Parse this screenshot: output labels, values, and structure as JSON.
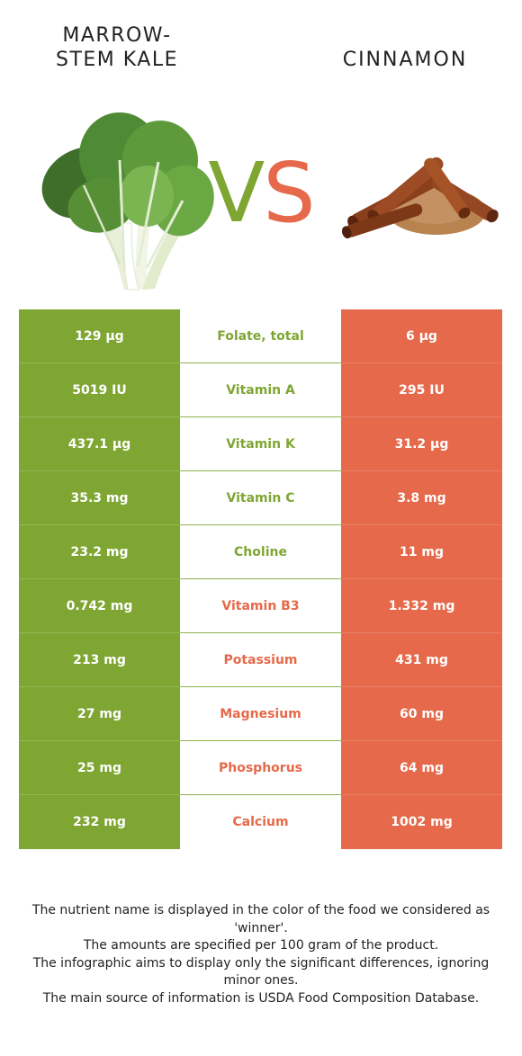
{
  "header": {
    "left_title_line1": "MARROW-",
    "left_title_line2": "STEM KALE",
    "right_title": "CINNAMON",
    "vs_v": "V",
    "vs_s": "S"
  },
  "colors": {
    "left_food": "#7fa633",
    "right_food": "#e5694a"
  },
  "rows": [
    {
      "left": "129 µg",
      "nutrient": "Folate, total",
      "right": "6 µg",
      "winner": "left"
    },
    {
      "left": "5019 IU",
      "nutrient": "Vitamin A",
      "right": "295 IU",
      "winner": "left"
    },
    {
      "left": "437.1 µg",
      "nutrient": "Vitamin K",
      "right": "31.2 µg",
      "winner": "left"
    },
    {
      "left": "35.3 mg",
      "nutrient": "Vitamin C",
      "right": "3.8 mg",
      "winner": "left"
    },
    {
      "left": "23.2 mg",
      "nutrient": "Choline",
      "right": "11 mg",
      "winner": "left"
    },
    {
      "left": "0.742 mg",
      "nutrient": "Vitamin B3",
      "right": "1.332 mg",
      "winner": "right"
    },
    {
      "left": "213 mg",
      "nutrient": "Potassium",
      "right": "431 mg",
      "winner": "right"
    },
    {
      "left": "27 mg",
      "nutrient": "Magnesium",
      "right": "60 mg",
      "winner": "right"
    },
    {
      "left": "25 mg",
      "nutrient": "Phosphorus",
      "right": "64 mg",
      "winner": "right"
    },
    {
      "left": "232 mg",
      "nutrient": "Calcium",
      "right": "1002 mg",
      "winner": "right"
    }
  ],
  "footer": {
    "line1": "The nutrient name is displayed in the color of the food we considered as 'winner'.",
    "line2": "The amounts are specified per 100 gram of the product.",
    "line3": "The infographic aims to display only the significant differences, ignoring minor ones.",
    "line4": "The main source of information is USDA Food Composition Database."
  }
}
